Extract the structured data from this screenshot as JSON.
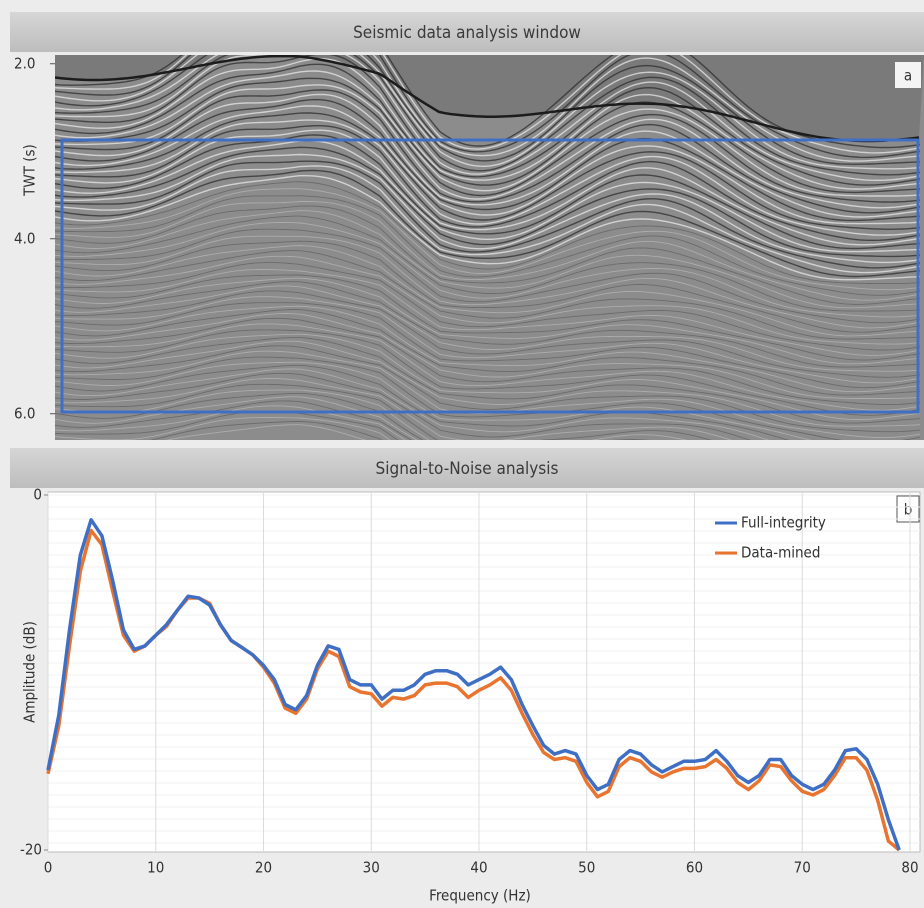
{
  "panel_a": {
    "title": "Seismic data analysis window",
    "label": "a",
    "ylabel": "TWT (s)",
    "ylim": [
      1.9,
      6.3
    ],
    "yticks": [
      {
        "value": 2,
        "label": "2.0"
      },
      {
        "value": 4,
        "label": "4.0"
      },
      {
        "value": 6,
        "label": "6.0"
      }
    ]
  },
  "chart_data": {
    "type": "line",
    "title": "Signal-to-Noise analysis",
    "label": "b",
    "xlabel": "Frequency (Hz)",
    "ylabel": "Amplitude  (dB)",
    "xlim": [
      0,
      80
    ],
    "ylim": [
      -20,
      0
    ],
    "xticks": [
      0,
      10,
      20,
      30,
      40,
      50,
      60,
      70,
      80
    ],
    "yticks": [
      0,
      -20
    ],
    "grid": true,
    "legend": "upper right",
    "x": [
      0,
      1,
      2,
      3,
      4,
      5,
      6,
      7,
      8,
      9,
      10,
      11,
      12,
      13,
      14,
      15,
      16,
      17,
      18,
      19,
      20,
      21,
      22,
      23,
      24,
      25,
      26,
      27,
      28,
      29,
      30,
      31,
      32,
      33,
      34,
      35,
      36,
      37,
      38,
      39,
      40,
      41,
      42,
      43,
      44,
      45,
      46,
      47,
      48,
      49,
      50,
      51,
      52,
      53,
      54,
      55,
      56,
      57,
      58,
      59,
      60,
      61,
      62,
      63,
      64,
      65,
      66,
      67,
      68,
      69,
      70,
      71,
      72,
      73,
      74,
      75,
      76,
      77,
      78,
      79
    ],
    "series": [
      {
        "name": "Full-integrity",
        "color": "#3f6fc4",
        "values": [
          -15.5,
          -12.4,
          -7.6,
          -3.4,
          -1.4,
          -2.3,
          -4.8,
          -7.6,
          -8.7,
          -8.5,
          -7.9,
          -7.3,
          -6.5,
          -5.7,
          -5.8,
          -6.2,
          -7.3,
          -8.2,
          -8.6,
          -9.0,
          -9.6,
          -10.4,
          -11.8,
          -12.1,
          -11.3,
          -9.6,
          -8.5,
          -8.7,
          -10.4,
          -10.7,
          -10.7,
          -11.5,
          -11.0,
          -11.0,
          -10.7,
          -10.1,
          -9.9,
          -9.9,
          -10.1,
          -10.7,
          -10.4,
          -10.1,
          -9.7,
          -10.4,
          -11.8,
          -13.0,
          -14.1,
          -14.6,
          -14.4,
          -14.6,
          -15.8,
          -16.6,
          -16.3,
          -14.9,
          -14.4,
          -14.6,
          -15.2,
          -15.6,
          -15.3,
          -15.0,
          -15.0,
          -14.9,
          -14.4,
          -15.0,
          -15.8,
          -16.2,
          -15.8,
          -14.9,
          -14.9,
          -15.8,
          -16.3,
          -16.6,
          -16.3,
          -15.5,
          -14.4,
          -14.3,
          -14.9,
          -16.3,
          -18.3,
          -20.0
        ]
      },
      {
        "name": "Data-mined",
        "color": "#e8742f",
        "values": [
          -15.7,
          -13.0,
          -8.5,
          -4.3,
          -2.0,
          -2.8,
          -5.4,
          -7.9,
          -8.8,
          -8.5,
          -7.9,
          -7.4,
          -6.5,
          -5.8,
          -5.8,
          -6.1,
          -7.3,
          -8.2,
          -8.6,
          -9.0,
          -9.7,
          -10.6,
          -12.0,
          -12.3,
          -11.5,
          -9.8,
          -8.8,
          -9.1,
          -10.8,
          -11.1,
          -11.2,
          -11.9,
          -11.4,
          -11.5,
          -11.3,
          -10.7,
          -10.6,
          -10.6,
          -10.8,
          -11.4,
          -11.0,
          -10.7,
          -10.3,
          -11.0,
          -12.3,
          -13.5,
          -14.5,
          -14.9,
          -14.8,
          -15.0,
          -16.2,
          -17.0,
          -16.7,
          -15.3,
          -14.8,
          -15.0,
          -15.6,
          -15.9,
          -15.6,
          -15.4,
          -15.4,
          -15.3,
          -14.9,
          -15.4,
          -16.2,
          -16.6,
          -16.1,
          -15.2,
          -15.3,
          -16.1,
          -16.7,
          -16.9,
          -16.6,
          -15.8,
          -14.8,
          -14.8,
          -15.5,
          -17.2,
          -19.5,
          -20.0
        ]
      }
    ]
  }
}
